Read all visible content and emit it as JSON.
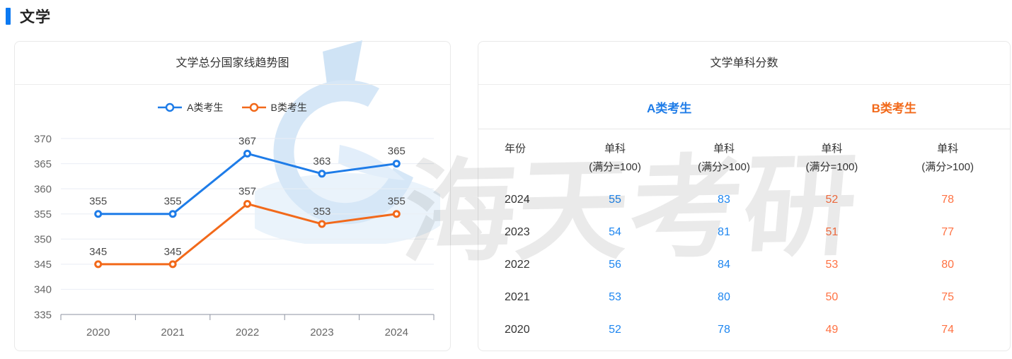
{
  "page": {
    "section_title": "文学"
  },
  "colors": {
    "accent": "#0b79f2",
    "blue": "#1e7ce8",
    "orange": "#f2691a",
    "value_blue": "#1e86f0",
    "value_orange": "#ff7243",
    "grid_line": "#e9eef4",
    "axis_line": "#8d93a1",
    "axis_label": "#666666",
    "data_label": "#4a4a4a"
  },
  "trend_card": {
    "title": "文学总分国家线趋势图"
  },
  "chart_data": {
    "type": "line",
    "title": "文学总分国家线趋势图",
    "categories": [
      "2020",
      "2021",
      "2022",
      "2023",
      "2024"
    ],
    "series": [
      {
        "name": "A类考生",
        "color": "#1e7ce8",
        "values": [
          355,
          355,
          367,
          363,
          365
        ]
      },
      {
        "name": "B类考生",
        "color": "#f2691a",
        "values": [
          345,
          345,
          357,
          353,
          355
        ]
      }
    ],
    "ylabel": "",
    "xlabel": "",
    "ylim": [
      335,
      370
    ],
    "ytick_step": 5,
    "grid": true,
    "legend_position": "top",
    "marker": "hollow-circle",
    "data_labels": true
  },
  "score_card": {
    "title": "文学单科分数",
    "group_headers": [
      {
        "label": "A类考生"
      },
      {
        "label": "B类考生"
      }
    ],
    "columns": [
      {
        "t": "年份",
        "s": ""
      },
      {
        "t": "单科",
        "s": "(满分=100)"
      },
      {
        "t": "单科",
        "s": "(满分>100)"
      },
      {
        "t": "单科",
        "s": "(满分=100)"
      },
      {
        "t": "单科",
        "s": "(满分>100)"
      }
    ],
    "rows": [
      [
        "2024",
        "55",
        "83",
        "52",
        "78"
      ],
      [
        "2023",
        "54",
        "81",
        "51",
        "77"
      ],
      [
        "2022",
        "56",
        "84",
        "53",
        "80"
      ],
      [
        "2021",
        "53",
        "80",
        "50",
        "75"
      ],
      [
        "2020",
        "52",
        "78",
        "49",
        "74"
      ]
    ]
  },
  "watermark": {
    "text": "海天考研"
  }
}
